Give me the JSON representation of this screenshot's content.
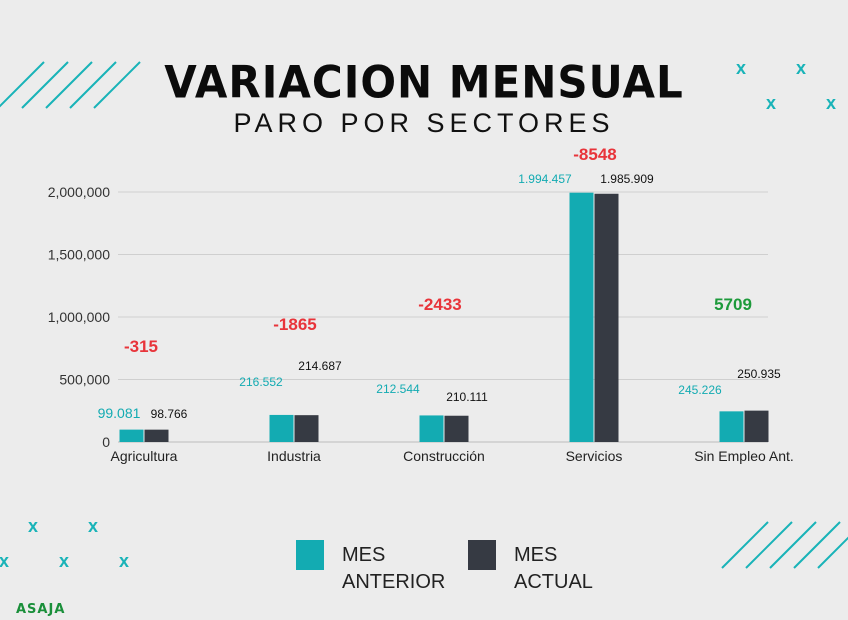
{
  "header": {
    "title": "VARIACION MENSUAL",
    "subtitle": "PARO POR SECTORES"
  },
  "logo_text": "ASAJA",
  "colors": {
    "teal": "#13abb2",
    "dark": "#363a43",
    "negative": "#e8343a",
    "positive": "#1d9a3b",
    "background": "#ececec"
  },
  "legend": [
    {
      "label_line1": "MES",
      "label_line2": "ANTERIOR",
      "color": "#13abb2"
    },
    {
      "label_line1": "MES",
      "label_line2": "ACTUAL",
      "color": "#363a43"
    }
  ],
  "chart_data": {
    "type": "bar",
    "categories": [
      "Agricultura",
      "Industria",
      "Construcción",
      "Servicios",
      "Sin Empleo Ant."
    ],
    "series": [
      {
        "name": "MES ANTERIOR",
        "values": [
          99081,
          216552,
          212544,
          1994457,
          245226
        ],
        "labels": [
          "99.081",
          "216.552",
          "212.544",
          "1.994.457",
          "245.226"
        ]
      },
      {
        "name": "MES ACTUAL",
        "values": [
          98766,
          214687,
          210111,
          1985909,
          250935
        ],
        "labels": [
          "98.766",
          "214.687",
          "210.111",
          "1.985.909",
          "250.935"
        ]
      }
    ],
    "variation": [
      "-315",
      "-1865",
      "-2433",
      "-8548",
      "5709"
    ],
    "y_ticks": [
      0,
      500000,
      1000000,
      1500000,
      2000000
    ],
    "y_tick_labels": [
      "0",
      "500,000",
      "1,000,000",
      "1,500,000",
      "2,000,000"
    ],
    "ylim": [
      0,
      2000000
    ],
    "grid": true
  }
}
